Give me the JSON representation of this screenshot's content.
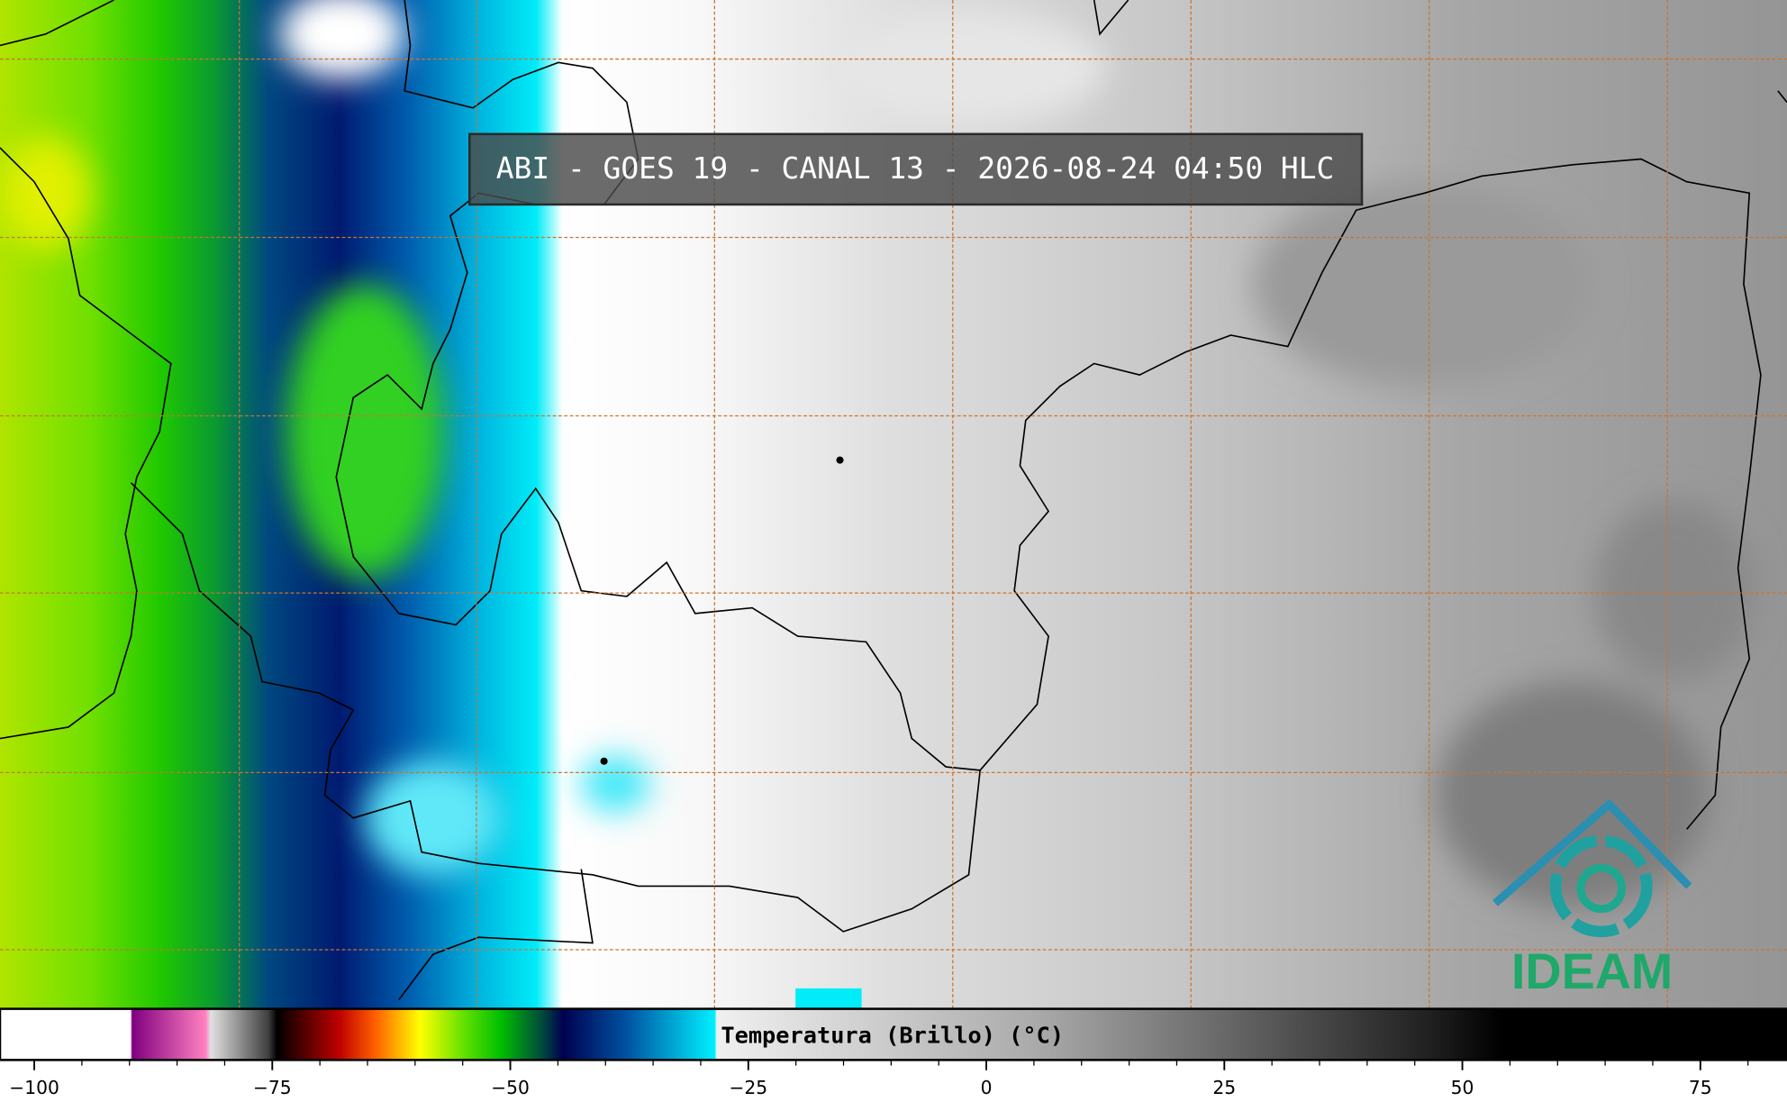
{
  "title": "ABI - GOES 19 - CANAL 13 - 2026-08-24 04:50 HLC",
  "colorbar": {
    "label": "Temperatura (Brillo) (°C)",
    "range": [
      -103.6,
      84.1
    ],
    "ticks": [
      {
        "value": -100,
        "label": "−100"
      },
      {
        "value": -75,
        "label": "−75"
      },
      {
        "value": -50,
        "label": "−50"
      },
      {
        "value": -25,
        "label": "−25"
      },
      0,
      25,
      50,
      75
    ]
  },
  "logo": "IDEAM"
}
